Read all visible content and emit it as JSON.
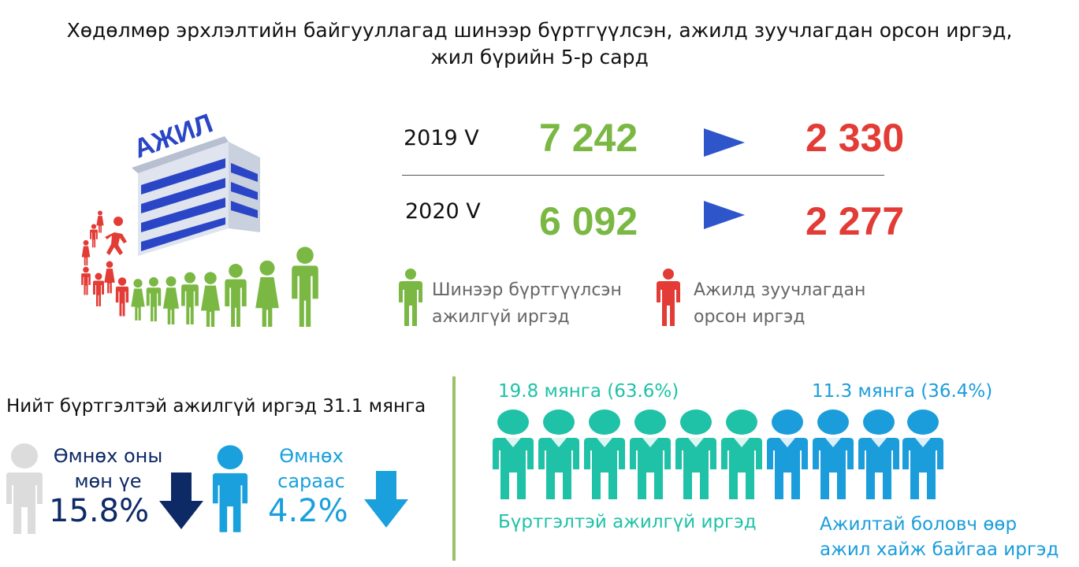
{
  "title_line1": "Хөдөлмөр эрхлэлтийн байгууллагад шинээр бүртгүүлсэн, ажилд зуучлагдан орсон иргэд,",
  "title_line2": "жил бүрийн 5-р сард",
  "building_sign": "АЖИЛ",
  "rows": [
    {
      "year": "2019 V",
      "registered": "7 242",
      "placed": "2 330"
    },
    {
      "year": "2020 V",
      "registered": "6 092",
      "placed": "2 277"
    }
  ],
  "legend": {
    "registered_line1": "Шинээр бүртгүүлсэн",
    "registered_line2": "ажилгүй иргэд",
    "placed_line1": "Ажилд зуучлагдан",
    "placed_line2": "орсон иргэд"
  },
  "total_text": "Нийт бүртгэлтэй ажилгүй иргэд 31.1 мянга",
  "prev_year": {
    "line1": "Өмнөх оны",
    "line2": "мөн үе",
    "pct": "15.8%"
  },
  "prev_month": {
    "line1": "Өмнөх",
    "line2": "сараас",
    "pct": "4.2%"
  },
  "split": {
    "teal_label": "19.8 мянга (63.6%)",
    "blue_label": "11.3 мянга (36.4%)",
    "teal_caption": "Бүртгэлтэй ажилгүй иргэд",
    "blue_caption_line1": "Ажилтай боловч өөр",
    "blue_caption_line2": "ажил хайж байгаа иргэд"
  },
  "colors": {
    "green": "#7ab843",
    "red": "#e33b35",
    "navy": "#0d2a66",
    "teal": "#1fc1a7",
    "blue": "#1b9ddb",
    "arrow_blue": "#2e55c9"
  }
}
